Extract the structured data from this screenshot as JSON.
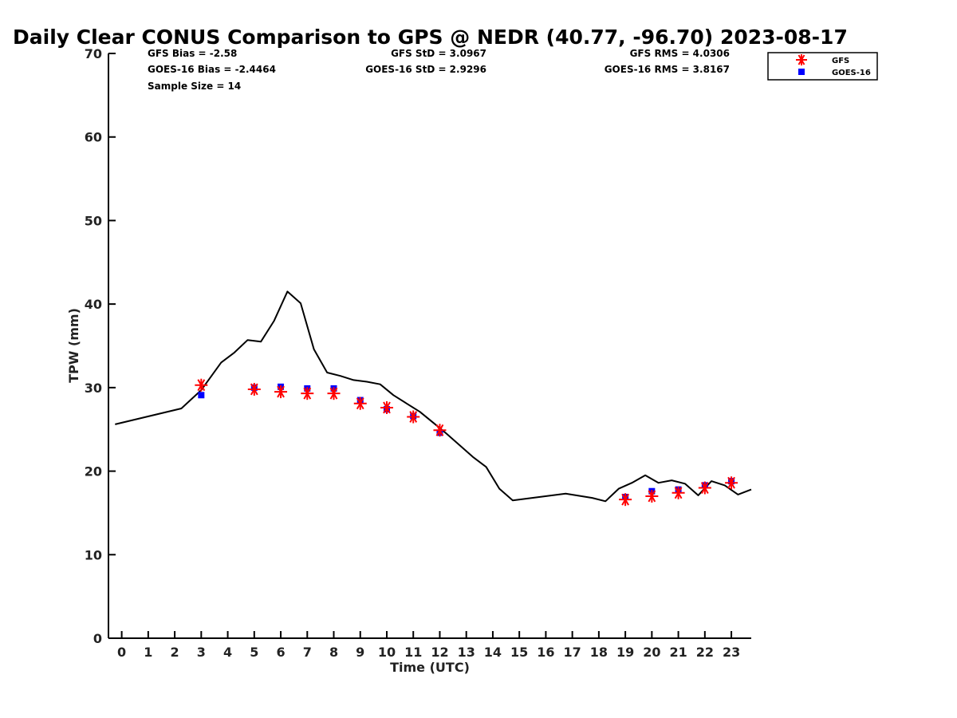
{
  "chart_data": {
    "type": "line",
    "title": "Daily Clear CONUS Comparison to GPS @ NEDR (40.77, -96.70) 2023-08-17",
    "xlabel": "Time (UTC)",
    "ylabel": "TPW (mm)",
    "xlim": [
      -0.5,
      23.75
    ],
    "ylim": [
      0,
      70
    ],
    "xticks": [
      0,
      1,
      2,
      3,
      4,
      5,
      6,
      7,
      8,
      9,
      10,
      11,
      12,
      13,
      14,
      15,
      16,
      17,
      18,
      19,
      20,
      21,
      22,
      23
    ],
    "yticks": [
      0,
      10,
      20,
      30,
      40,
      50,
      60,
      70
    ],
    "grid": false,
    "legend_position": "top-right",
    "stats": {
      "gfs_bias": "GFS Bias = -2.58",
      "goes_bias": "GOES-16 Bias = -2.4464",
      "sample_size": "Sample Size = 14",
      "gfs_std": "GFS StD = 3.0967",
      "goes_std": "GOES-16 StD = 2.9296",
      "gfs_rms": "GFS RMS = 4.0306",
      "goes_rms": "GOES-16 RMS = 3.8167"
    },
    "series": [
      {
        "legend": false,
        "kind": "line",
        "color": "#000000",
        "x": [
          -0.25,
          2.25,
          3.0,
          3.75,
          4.25,
          4.75,
          5.25,
          5.75,
          6.25,
          6.75,
          7.25,
          7.75,
          8.25,
          8.75,
          9.25,
          9.75,
          10.25,
          10.75,
          11.25,
          11.75,
          12.25,
          12.75,
          13.25,
          13.75,
          14.25,
          14.75,
          15.75,
          16.75,
          17.75,
          18.25,
          18.75,
          19.25,
          19.75,
          20.25,
          20.75,
          21.25,
          21.75,
          22.25,
          22.75,
          23.25,
          23.75
        ],
        "y": [
          25.6,
          27.5,
          29.7,
          33.0,
          34.2,
          35.7,
          35.5,
          38.0,
          41.5,
          40.1,
          34.6,
          31.8,
          31.4,
          30.9,
          30.7,
          30.4,
          29.1,
          28.1,
          27.1,
          25.8,
          24.5,
          23.1,
          21.7,
          20.5,
          17.9,
          16.5,
          16.9,
          17.3,
          16.8,
          16.4,
          17.9,
          18.6,
          19.5,
          18.6,
          18.9,
          18.5,
          17.1,
          18.8,
          18.3,
          17.2,
          17.8
        ]
      },
      {
        "name": "GFS",
        "kind": "scatter",
        "marker": "asterisk",
        "color": "#ff0000",
        "x": [
          3,
          5,
          6,
          7,
          8,
          9,
          10,
          11,
          12,
          19,
          20,
          21,
          22,
          23
        ],
        "y": [
          30.3,
          29.8,
          29.5,
          29.3,
          29.3,
          28.1,
          27.6,
          26.5,
          24.9,
          16.6,
          17.0,
          17.4,
          18.0,
          18.6
        ]
      },
      {
        "name": "GOES-16",
        "kind": "scatter",
        "marker": "square",
        "color": "#0000ff",
        "x": [
          3,
          5,
          6,
          7,
          8,
          9,
          10,
          11,
          12,
          19,
          20,
          21,
          22,
          23
        ],
        "y": [
          29.1,
          30.0,
          30.1,
          29.9,
          29.9,
          28.5,
          27.4,
          26.6,
          24.6,
          16.9,
          17.6,
          17.8,
          18.3,
          18.8
        ]
      }
    ]
  }
}
